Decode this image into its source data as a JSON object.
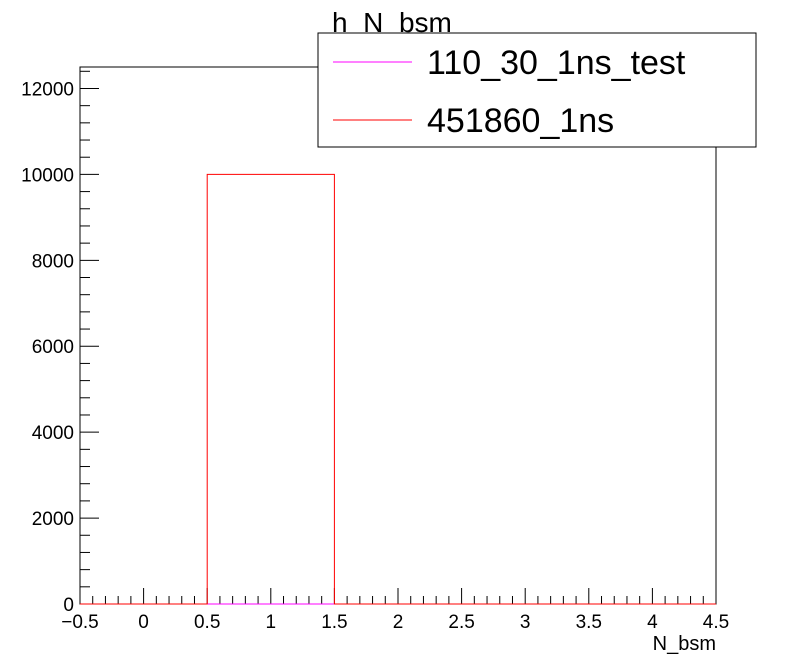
{
  "chart_data": {
    "type": "bar",
    "title": "h_N_bsm",
    "xlabel": "N_bsm",
    "ylabel": "",
    "xlim": [
      -0.5,
      4.5
    ],
    "ylim": [
      0,
      12500
    ],
    "xticks": [
      "−0.5",
      "0",
      "0.5",
      "1",
      "1.5",
      "2",
      "2.5",
      "3",
      "3.5",
      "4",
      "4.5"
    ],
    "yticks": [
      "0",
      "2000",
      "4000",
      "6000",
      "8000",
      "10000",
      "12000"
    ],
    "bin_edges": [
      -0.5,
      0.5,
      1.5,
      2.5,
      3.5,
      4.5
    ],
    "series": [
      {
        "name": "110_30_1ns_test",
        "color": "#ff00ff",
        "values": [
          0,
          0,
          0,
          0,
          0
        ]
      },
      {
        "name": "451860_1ns",
        "color": "#ff0000",
        "values": [
          0,
          10000,
          0,
          0,
          0
        ]
      }
    ],
    "legend_position": "top-right",
    "grid": false
  }
}
